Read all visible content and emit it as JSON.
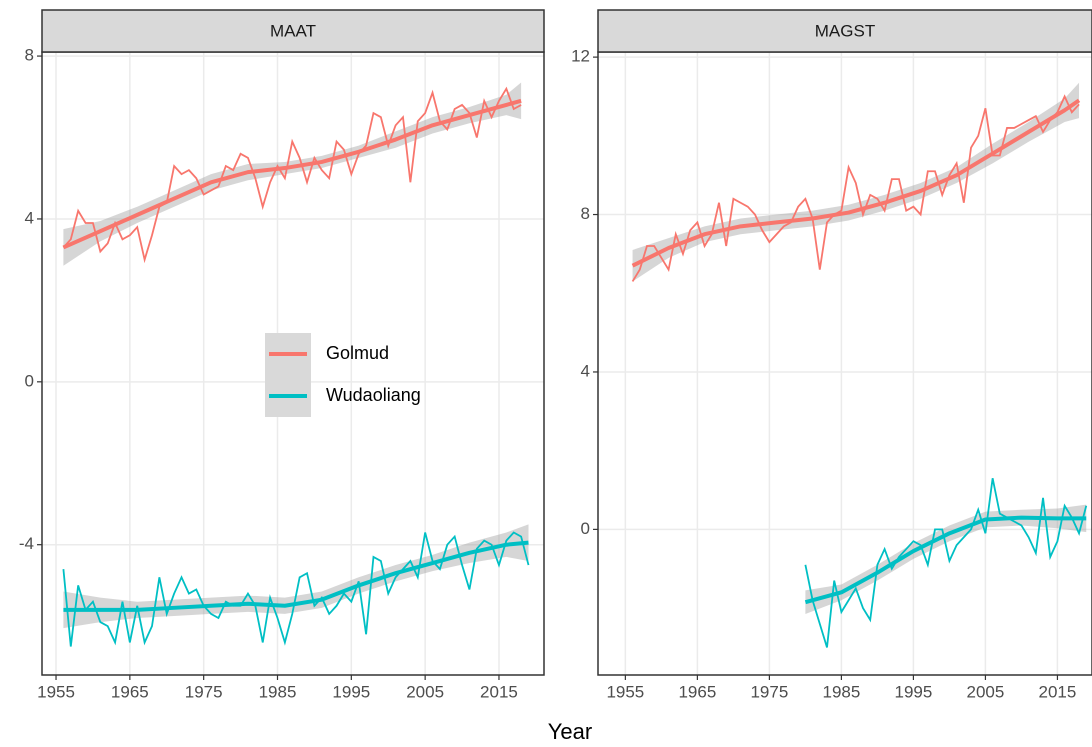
{
  "chart_data": [
    {
      "type": "line",
      "title": "MAAT",
      "xlabel": "Year",
      "legend": true,
      "xlim": [
        1953.1,
        2021.1
      ],
      "ylim": [
        -7.2,
        8.1
      ],
      "xticks": [
        1955,
        1965,
        1975,
        1985,
        1995,
        2005,
        2015
      ],
      "yticks": [
        -4,
        0,
        4,
        8
      ],
      "grid": true,
      "x": [
        1956,
        1957,
        1958,
        1959,
        1960,
        1961,
        1962,
        1963,
        1964,
        1965,
        1966,
        1967,
        1968,
        1969,
        1970,
        1971,
        1972,
        1973,
        1974,
        1975,
        1976,
        1977,
        1978,
        1979,
        1980,
        1981,
        1982,
        1983,
        1984,
        1985,
        1986,
        1987,
        1988,
        1989,
        1990,
        1991,
        1992,
        1993,
        1994,
        1995,
        1996,
        1997,
        1998,
        1999,
        2000,
        2001,
        2002,
        2003,
        2004,
        2005,
        2006,
        2007,
        2008,
        2009,
        2010,
        2011,
        2012,
        2013,
        2014,
        2015,
        2016,
        2017,
        2018,
        2019
      ],
      "series": [
        {
          "name": "Golmud",
          "color": "#F8766D",
          "values": [
            3.3,
            3.5,
            4.2,
            3.9,
            3.9,
            3.2,
            3.4,
            3.9,
            3.5,
            3.6,
            3.8,
            3.0,
            3.6,
            4.3,
            4.4,
            5.3,
            5.1,
            5.2,
            5.0,
            4.6,
            4.7,
            4.8,
            5.3,
            5.2,
            5.6,
            5.5,
            5.0,
            4.3,
            4.9,
            5.3,
            5.0,
            5.9,
            5.5,
            4.9,
            5.5,
            5.2,
            5.0,
            5.9,
            5.7,
            5.1,
            5.6,
            5.8,
            6.6,
            6.5,
            5.8,
            6.3,
            6.5,
            4.9,
            6.4,
            6.6,
            7.1,
            6.4,
            6.2,
            6.7,
            6.8,
            6.6,
            6.0,
            6.9,
            6.5,
            6.9,
            7.2,
            6.7,
            6.8,
            null
          ],
          "trend_x": [
            1956,
            1961,
            1966,
            1971,
            1976,
            1981,
            1986,
            1991,
            1996,
            2001,
            2006,
            2011,
            2016,
            2018
          ],
          "trend": [
            3.3,
            3.7,
            4.1,
            4.5,
            4.9,
            5.15,
            5.25,
            5.4,
            5.65,
            5.95,
            6.3,
            6.55,
            6.8,
            6.9
          ],
          "trend_ci": [
            0.45,
            0.25,
            0.2,
            0.2,
            0.2,
            0.2,
            0.15,
            0.15,
            0.15,
            0.2,
            0.2,
            0.2,
            0.25,
            0.45
          ]
        },
        {
          "name": "Wudaoliang",
          "color": "#00BFC4",
          "values": [
            -4.6,
            -6.5,
            -5.0,
            -5.6,
            -5.4,
            -5.9,
            -6.0,
            -6.4,
            -5.4,
            -6.4,
            -5.5,
            -6.4,
            -6.0,
            -4.8,
            -5.7,
            -5.2,
            -4.8,
            -5.2,
            -5.1,
            -5.5,
            -5.7,
            -5.8,
            -5.4,
            -5.5,
            -5.5,
            -5.2,
            -5.5,
            -6.4,
            -5.3,
            -5.8,
            -6.4,
            -5.7,
            -4.8,
            -4.7,
            -5.5,
            -5.3,
            -5.7,
            -5.5,
            -5.2,
            -5.4,
            -4.9,
            -6.2,
            -4.3,
            -4.4,
            -5.2,
            -4.8,
            -4.6,
            -4.4,
            -4.8,
            -3.7,
            -4.4,
            -4.6,
            -4.0,
            -3.8,
            -4.5,
            -5.1,
            -4.1,
            -3.9,
            -4.0,
            -4.5,
            -3.9,
            -3.7,
            -3.8,
            -4.5
          ],
          "trend_x": [
            1956,
            1961,
            1966,
            1971,
            1976,
            1981,
            1986,
            1991,
            1996,
            2001,
            2006,
            2011,
            2016,
            2019
          ],
          "trend": [
            -5.6,
            -5.6,
            -5.6,
            -5.55,
            -5.5,
            -5.45,
            -5.5,
            -5.35,
            -5.0,
            -4.7,
            -4.45,
            -4.2,
            -4.0,
            -3.95
          ],
          "trend_ci": [
            0.45,
            0.3,
            0.2,
            0.2,
            0.2,
            0.2,
            0.2,
            0.2,
            0.2,
            0.2,
            0.2,
            0.25,
            0.3,
            0.45
          ]
        }
      ]
    },
    {
      "type": "line",
      "title": "MAGST",
      "legend": false,
      "xlim": [
        1951.2,
        2019.8
      ],
      "ylim": [
        -3.7,
        12.13
      ],
      "xticks": [
        1955,
        1965,
        1975,
        1985,
        1995,
        2005,
        2015
      ],
      "yticks": [
        0,
        4,
        8,
        12
      ],
      "grid": true,
      "x": [
        1956,
        1957,
        1958,
        1959,
        1960,
        1961,
        1962,
        1963,
        1964,
        1965,
        1966,
        1967,
        1968,
        1969,
        1970,
        1971,
        1972,
        1973,
        1974,
        1975,
        1976,
        1977,
        1978,
        1979,
        1980,
        1981,
        1982,
        1983,
        1984,
        1985,
        1986,
        1987,
        1988,
        1989,
        1990,
        1991,
        1992,
        1993,
        1994,
        1995,
        1996,
        1997,
        1998,
        1999,
        2000,
        2001,
        2002,
        2003,
        2004,
        2005,
        2006,
        2007,
        2008,
        2009,
        2010,
        2011,
        2012,
        2013,
        2014,
        2015,
        2016,
        2017,
        2018,
        2019
      ],
      "series": [
        {
          "name": "Golmud",
          "color": "#F8766D",
          "values": [
            6.3,
            6.6,
            7.2,
            7.2,
            6.9,
            6.6,
            7.5,
            7.0,
            7.6,
            7.8,
            7.2,
            7.5,
            8.3,
            7.2,
            8.4,
            8.3,
            8.2,
            8.0,
            7.6,
            7.3,
            7.5,
            7.7,
            7.8,
            8.2,
            8.4,
            7.9,
            6.6,
            7.8,
            8.0,
            8.1,
            9.2,
            8.8,
            8.0,
            8.5,
            8.4,
            8.1,
            8.9,
            8.9,
            8.1,
            8.2,
            8.0,
            9.1,
            9.1,
            8.5,
            9.0,
            9.3,
            8.3,
            9.7,
            10.0,
            10.7,
            9.5,
            9.5,
            10.2,
            10.2,
            10.3,
            10.4,
            10.5,
            10.1,
            10.4,
            10.6,
            11.0,
            10.6,
            10.8,
            null
          ],
          "trend_x": [
            1956,
            1961,
            1966,
            1971,
            1976,
            1981,
            1986,
            1991,
            1996,
            2001,
            2006,
            2011,
            2016,
            2018
          ],
          "trend": [
            6.7,
            7.15,
            7.5,
            7.7,
            7.8,
            7.9,
            8.05,
            8.3,
            8.6,
            9.0,
            9.55,
            10.1,
            10.65,
            10.9
          ],
          "trend_ci": [
            0.4,
            0.25,
            0.2,
            0.2,
            0.2,
            0.2,
            0.2,
            0.2,
            0.2,
            0.2,
            0.25,
            0.25,
            0.3,
            0.45
          ]
        },
        {
          "name": "Wudaoliang",
          "color": "#00BFC4",
          "values": [
            null,
            null,
            null,
            null,
            null,
            null,
            null,
            null,
            null,
            null,
            null,
            null,
            null,
            null,
            null,
            null,
            null,
            null,
            null,
            null,
            null,
            null,
            null,
            null,
            -0.9,
            -1.8,
            -2.4,
            -3.0,
            -1.3,
            -2.1,
            -1.8,
            -1.5,
            -2.0,
            -2.3,
            -0.9,
            -0.5,
            -1.0,
            -0.7,
            -0.5,
            -0.3,
            -0.4,
            -0.9,
            0.0,
            0.0,
            -0.8,
            -0.4,
            -0.2,
            0.0,
            0.5,
            -0.1,
            1.3,
            0.4,
            0.3,
            0.2,
            0.1,
            -0.2,
            -0.6,
            0.8,
            -0.7,
            -0.3,
            0.6,
            0.3,
            -0.1,
            0.6
          ],
          "trend_x": [
            1980,
            1985,
            1990,
            1995,
            2000,
            2005,
            2010,
            2015,
            2019
          ],
          "trend": [
            -1.85,
            -1.6,
            -1.1,
            -0.55,
            -0.1,
            0.25,
            0.3,
            0.28,
            0.28
          ],
          "trend_ci": [
            0.3,
            0.2,
            0.2,
            0.2,
            0.2,
            0.2,
            0.2,
            0.25,
            0.35
          ]
        }
      ]
    }
  ]
}
